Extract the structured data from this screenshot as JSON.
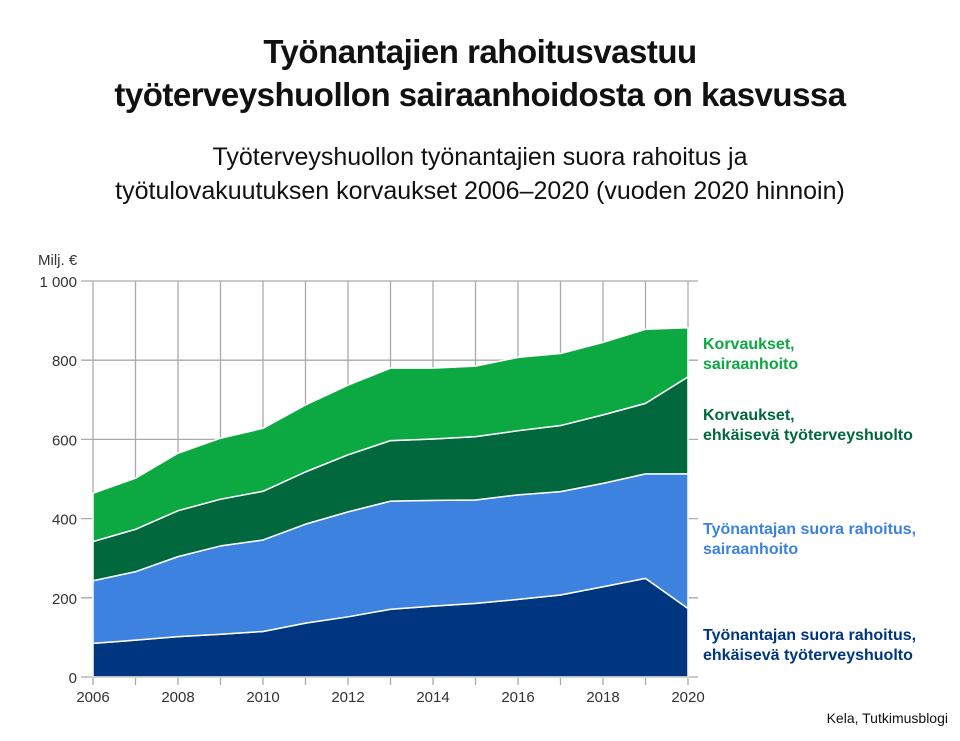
{
  "title_lines": [
    "Työnantajien rahoitusvastuu",
    "työterveyshuollon sairaanhoidosta on kasvussa"
  ],
  "subtitle_lines": [
    "Työterveyshuollon työnantajien suora rahoitus ja",
    "työtulovakuutuksen korvaukset 2006–2020 (vuoden 2020 hinnoin)"
  ],
  "source": "Kela, Tutkimusblogi",
  "chart_data": {
    "type": "area",
    "stacked": true,
    "ylabel": "Milj. €",
    "ylim": [
      0,
      1000
    ],
    "yticks": [
      0,
      200,
      400,
      600,
      800,
      1000
    ],
    "ytick_labels": [
      "0",
      "200",
      "400",
      "600",
      "800",
      "1 000"
    ],
    "xlim": [
      2006,
      2020
    ],
    "xticks": [
      2006,
      2008,
      2010,
      2012,
      2014,
      2016,
      2018,
      2020
    ],
    "xtick_labels": [
      "2006",
      "2008",
      "2010",
      "2012",
      "2014",
      "2016",
      "2018",
      "2020"
    ],
    "grid": true,
    "legend": "right, labels beside areas",
    "x": [
      2006,
      2007,
      2008,
      2009,
      2010,
      2011,
      2012,
      2013,
      2014,
      2015,
      2016,
      2017,
      2018,
      2019,
      2020
    ],
    "series": [
      {
        "name": "Työnantajan suora rahoitus, ehkäisevä työterveyshuolto",
        "label_lines": [
          "Työnantajan suora rahoitus,",
          "ehkäisevä työterveyshuolto"
        ],
        "color": "#003580",
        "values": [
          85,
          93,
          102,
          108,
          115,
          136,
          152,
          171,
          179,
          186,
          196,
          207,
          228,
          249,
          173
        ]
      },
      {
        "name": "Työnantajan suora rahoitus, sairaanhoito",
        "label_lines": [
          "Työnantajan suora rahoitus,",
          "sairaanhoito"
        ],
        "color": "#3c82de",
        "values": [
          158,
          173,
          202,
          223,
          231,
          250,
          265,
          273,
          267,
          261,
          264,
          261,
          261,
          264,
          340
        ]
      },
      {
        "name": "Korvaukset, ehkäisevä työterveyshuolto",
        "label_lines": [
          "Korvaukset,",
          "ehkäisevä työterveyshuolto"
        ],
        "color": "#00683c",
        "values": [
          99,
          107,
          116,
          118,
          123,
          132,
          144,
          153,
          155,
          160,
          162,
          167,
          173,
          178,
          245
        ]
      },
      {
        "name": "Korvaukset, sairaanhoito",
        "label_lines": [
          "Korvaukset,",
          "sairaanhoito"
        ],
        "color": "#0ca841",
        "values": [
          122,
          129,
          145,
          154,
          159,
          169,
          176,
          183,
          179,
          178,
          185,
          182,
          183,
          187,
          124
        ]
      }
    ]
  }
}
